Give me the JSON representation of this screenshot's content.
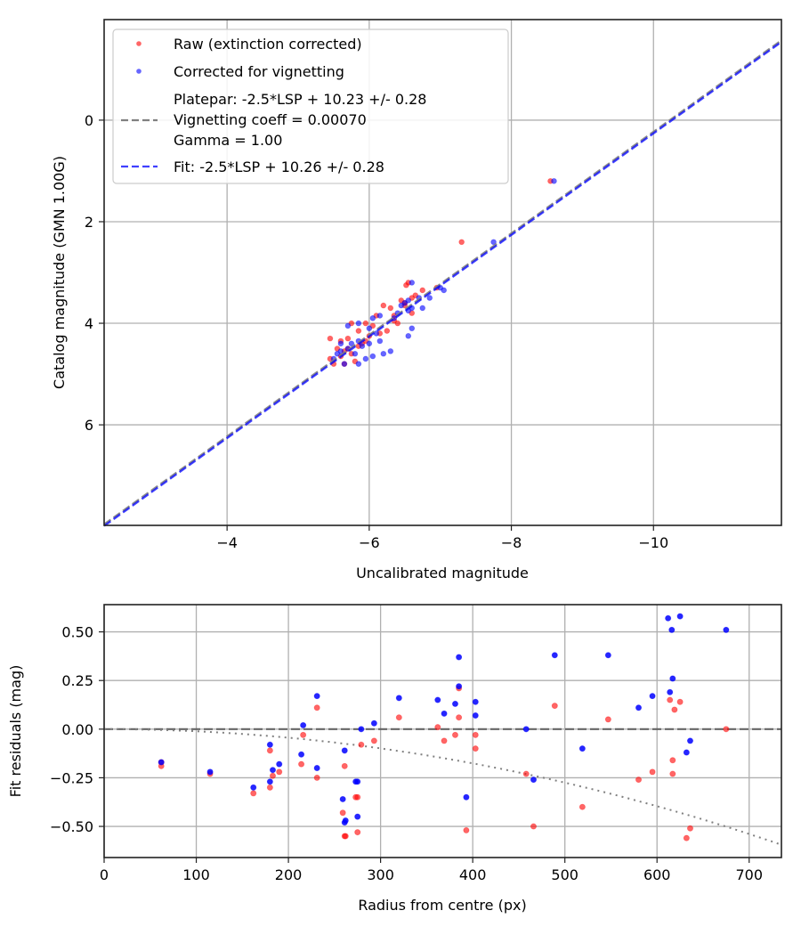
{
  "chart_data": [
    {
      "type": "scatter",
      "title": "",
      "xlabel": "Uncalibrated magnitude",
      "ylabel": "Catalog magnitude (GMN 1.00G)",
      "xlim": [
        -2.27,
        -11.8
      ],
      "ylim": [
        7.98,
        -1.98
      ],
      "x_inverted": true,
      "y_inverted": true,
      "grid": true,
      "legend_position": "upper left",
      "xticks": [
        -4,
        -6,
        -8,
        -10
      ],
      "xtick_labels": [
        "−4",
        "−6",
        "−8",
        "−10"
      ],
      "yticks": [
        0,
        2,
        4,
        6
      ],
      "ytick_labels": [
        "0",
        "2",
        "4",
        "6"
      ],
      "legend": [
        {
          "label": "Raw (extinction corrected)",
          "marker": "dot",
          "color": "#ff0000"
        },
        {
          "label": "Corrected for vignetting",
          "marker": "dot",
          "color": "#0000ff"
        },
        {
          "label_lines": [
            "Platepar: -2.5*LSP + 10.23 +/- 0.28",
            "Vignetting coeff = 0.00070",
            "Gamma = 1.00"
          ],
          "marker": "dashed-line",
          "color": "#808080"
        },
        {
          "label": "Fit: -2.5*LSP + 10.26 +/- 0.28",
          "marker": "dashed-line",
          "color": "#0000ff"
        }
      ],
      "series": [
        {
          "name": "Raw (extinction corrected)",
          "color": "#ff0000",
          "alpha": 0.6,
          "points": [
            [
              -8.55,
              1.2
            ],
            [
              -7.3,
              2.4
            ],
            [
              -6.55,
              3.2
            ],
            [
              -6.52,
              3.25
            ],
            [
              -6.6,
              3.5
            ],
            [
              -6.95,
              3.3
            ],
            [
              -6.45,
              3.55
            ],
            [
              -6.65,
              3.45
            ],
            [
              -6.3,
              3.7
            ],
            [
              -6.1,
              3.85
            ],
            [
              -6.2,
              3.65
            ],
            [
              -5.95,
              4.0
            ],
            [
              -6.6,
              3.8
            ],
            [
              -6.35,
              3.85
            ],
            [
              -6.0,
              4.25
            ],
            [
              -6.05,
              4.05
            ],
            [
              -5.75,
              4.0
            ],
            [
              -5.7,
              4.3
            ],
            [
              -5.85,
              4.15
            ],
            [
              -5.45,
              4.3
            ],
            [
              -5.9,
              4.4
            ],
            [
              -5.55,
              4.5
            ],
            [
              -5.6,
              4.65
            ],
            [
              -5.45,
              4.7
            ],
            [
              -5.75,
              4.6
            ],
            [
              -5.65,
              4.8
            ],
            [
              -5.8,
              4.75
            ],
            [
              -5.7,
              4.5
            ],
            [
              -5.65,
              4.55
            ],
            [
              -6.25,
              4.15
            ],
            [
              -6.35,
              3.95
            ],
            [
              -6.4,
              4.0
            ],
            [
              -6.5,
              3.6
            ],
            [
              -6.75,
              3.35
            ],
            [
              -6.15,
              4.2
            ],
            [
              -5.85,
              4.45
            ],
            [
              -5.95,
              4.35
            ],
            [
              -5.6,
              4.35
            ],
            [
              -6.5,
              3.65
            ],
            [
              -5.5,
              4.8
            ]
          ]
        },
        {
          "name": "Corrected for vignetting",
          "color": "#0000ff",
          "alpha": 0.6,
          "points": [
            [
              -8.6,
              1.2
            ],
            [
              -7.75,
              2.4
            ],
            [
              -6.6,
              3.2
            ],
            [
              -7.0,
              3.3
            ],
            [
              -7.05,
              3.35
            ],
            [
              -6.85,
              3.5
            ],
            [
              -6.7,
              3.5
            ],
            [
              -6.55,
              3.55
            ],
            [
              -6.5,
              3.6
            ],
            [
              -6.45,
              3.65
            ],
            [
              -6.6,
              3.7
            ],
            [
              -6.55,
              3.75
            ],
            [
              -6.4,
              3.8
            ],
            [
              -6.75,
              3.7
            ],
            [
              -6.15,
              3.85
            ],
            [
              -6.05,
              3.9
            ],
            [
              -5.85,
              4.0
            ],
            [
              -5.7,
              4.05
            ],
            [
              -6.6,
              4.1
            ],
            [
              -6.55,
              4.25
            ],
            [
              -6.15,
              4.35
            ],
            [
              -6.0,
              4.4
            ],
            [
              -5.85,
              4.35
            ],
            [
              -5.75,
              4.4
            ],
            [
              -5.7,
              4.5
            ],
            [
              -5.6,
              4.55
            ],
            [
              -5.8,
              4.6
            ],
            [
              -5.95,
              4.7
            ],
            [
              -6.3,
              4.55
            ],
            [
              -6.2,
              4.6
            ],
            [
              -5.65,
              4.8
            ],
            [
              -5.85,
              4.8
            ],
            [
              -6.05,
              4.65
            ],
            [
              -5.55,
              4.6
            ],
            [
              -5.9,
              4.45
            ],
            [
              -6.1,
              4.2
            ],
            [
              -6.35,
              3.9
            ],
            [
              -5.5,
              4.7
            ],
            [
              -5.6,
              4.4
            ],
            [
              -6.0,
              4.1
            ]
          ]
        },
        {
          "name": "Platepar",
          "type": "line",
          "style": "dashed",
          "color": "#808080",
          "x": [
            -2.27,
            -11.8
          ],
          "y": [
            7.96,
            -1.57
          ]
        },
        {
          "name": "Fit",
          "type": "line",
          "style": "dashed",
          "color": "#0000ff",
          "x": [
            -2.27,
            -11.8
          ],
          "y": [
            7.99,
            -1.54
          ]
        }
      ]
    },
    {
      "type": "scatter",
      "title": "",
      "xlabel": "Radius from centre (px)",
      "ylabel": "Fit residuals (mag)",
      "xlim": [
        0,
        735
      ],
      "ylim": [
        -0.66,
        0.64
      ],
      "grid": true,
      "xticks": [
        0,
        100,
        200,
        300,
        400,
        500,
        600,
        700
      ],
      "xtick_labels": [
        "0",
        "100",
        "200",
        "300",
        "400",
        "500",
        "600",
        "700"
      ],
      "yticks": [
        0.5,
        0.25,
        0.0,
        -0.25,
        -0.5
      ],
      "ytick_labels": [
        "0.50",
        "0.25",
        "0.00",
        "−0.25",
        "−0.50"
      ],
      "series": [
        {
          "name": "Raw (extinction corrected)",
          "color": "#ff0000",
          "alpha": 0.6,
          "points": [
            [
              62,
              -0.19
            ],
            [
              62,
              -0.17
            ],
            [
              115,
              -0.23
            ],
            [
              162,
              -0.33
            ],
            [
              180,
              -0.11
            ],
            [
              180,
              -0.3
            ],
            [
              183,
              -0.24
            ],
            [
              190,
              -0.22
            ],
            [
              214,
              -0.18
            ],
            [
              216,
              -0.03
            ],
            [
              231,
              0.11
            ],
            [
              231,
              -0.25
            ],
            [
              259,
              -0.43
            ],
            [
              261,
              -0.19
            ],
            [
              261,
              -0.55
            ],
            [
              262,
              -0.55
            ],
            [
              273,
              -0.35
            ],
            [
              275,
              -0.35
            ],
            [
              275,
              -0.53
            ],
            [
              279,
              -0.08
            ],
            [
              293,
              -0.06
            ],
            [
              320,
              0.06
            ],
            [
              362,
              0.01
            ],
            [
              369,
              -0.06
            ],
            [
              381,
              -0.03
            ],
            [
              385,
              0.21
            ],
            [
              385,
              0.06
            ],
            [
              403,
              -0.03
            ],
            [
              403,
              -0.1
            ],
            [
              393,
              -0.52
            ],
            [
              458,
              -0.23
            ],
            [
              466,
              -0.5
            ],
            [
              489,
              0.12
            ],
            [
              519,
              -0.4
            ],
            [
              547,
              0.05
            ],
            [
              580,
              -0.26
            ],
            [
              595,
              -0.22
            ],
            [
              614,
              0.15
            ],
            [
              617,
              -0.16
            ],
            [
              617,
              -0.23
            ],
            [
              619,
              0.1
            ],
            [
              625,
              0.14
            ],
            [
              632,
              -0.56
            ],
            [
              636,
              -0.51
            ],
            [
              675,
              0.0
            ]
          ]
        },
        {
          "name": "Corrected for vignetting",
          "color": "#0000ff",
          "alpha": 0.85,
          "points": [
            [
              62,
              -0.17
            ],
            [
              115,
              -0.22
            ],
            [
              162,
              -0.3
            ],
            [
              180,
              -0.08
            ],
            [
              180,
              -0.27
            ],
            [
              183,
              -0.21
            ],
            [
              190,
              -0.18
            ],
            [
              214,
              -0.13
            ],
            [
              216,
              0.02
            ],
            [
              231,
              0.17
            ],
            [
              231,
              -0.2
            ],
            [
              259,
              -0.36
            ],
            [
              261,
              -0.11
            ],
            [
              261,
              -0.48
            ],
            [
              262,
              -0.47
            ],
            [
              273,
              -0.27
            ],
            [
              275,
              -0.27
            ],
            [
              275,
              -0.45
            ],
            [
              279,
              0.0
            ],
            [
              293,
              0.03
            ],
            [
              320,
              0.16
            ],
            [
              362,
              0.15
            ],
            [
              369,
              0.08
            ],
            [
              381,
              0.13
            ],
            [
              385,
              0.22
            ],
            [
              385,
              0.37
            ],
            [
              403,
              0.14
            ],
            [
              403,
              0.07
            ],
            [
              393,
              -0.35
            ],
            [
              458,
              0.0
            ],
            [
              466,
              -0.26
            ],
            [
              489,
              0.38
            ],
            [
              519,
              -0.1
            ],
            [
              547,
              0.38
            ],
            [
              580,
              0.11
            ],
            [
              595,
              0.17
            ],
            [
              612,
              0.57
            ],
            [
              616,
              0.51
            ],
            [
              614,
              0.19
            ],
            [
              617,
              0.26
            ],
            [
              625,
              0.58
            ],
            [
              632,
              -0.12
            ],
            [
              636,
              -0.06
            ],
            [
              675,
              0.51
            ]
          ]
        },
        {
          "name": "Zero line",
          "type": "line",
          "style": "dashed",
          "color": "#555555",
          "x": [
            0,
            735
          ],
          "y": [
            0,
            0
          ]
        },
        {
          "name": "Vignetting model",
          "type": "line",
          "style": "dotted",
          "color": "#808080",
          "formula": "y = -1.1e-6 * r^2",
          "x": [
            0,
            735
          ],
          "y": [
            0,
            -0.59
          ]
        }
      ]
    }
  ]
}
